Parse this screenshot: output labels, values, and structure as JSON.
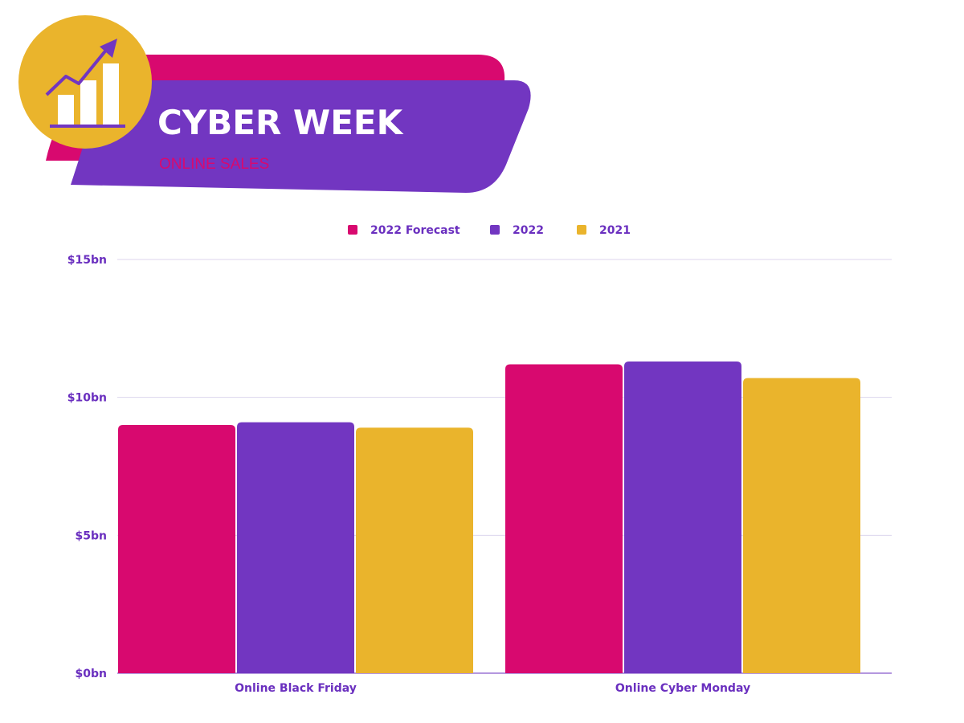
{
  "header": {
    "title": "CYBER WEEK",
    "subtitle": "ONLINE SALES",
    "icon": "growth-chart-icon"
  },
  "colors": {
    "pink": "#D8096F",
    "purple": "#7236C1",
    "gold": "#EAB42C",
    "grid": "#DCD6EE",
    "axis_text": "#6A2FBF"
  },
  "chart_data": {
    "type": "bar",
    "categories": [
      "Online Black Friday",
      "Online Cyber Monday"
    ],
    "series": [
      {
        "name": "2022 Forecast",
        "values": [
          9.0,
          11.2
        ],
        "color": "#D8096F"
      },
      {
        "name": "2022",
        "values": [
          9.1,
          11.3
        ],
        "color": "#7236C1"
      },
      {
        "name": "2021",
        "values": [
          8.9,
          10.7
        ],
        "color": "#EAB42C"
      }
    ],
    "yticks": [
      "$0bn",
      "$5bn",
      "$10bn",
      "$15bn"
    ],
    "ylim": [
      0,
      15
    ],
    "xlabel": "",
    "ylabel": "",
    "legend": "top-center",
    "grid": true
  }
}
